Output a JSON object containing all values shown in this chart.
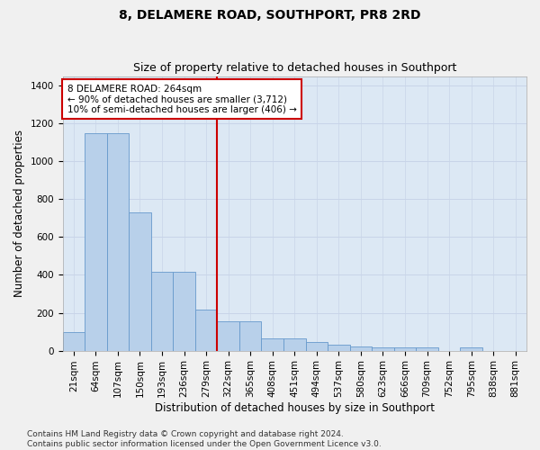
{
  "title": "8, DELAMERE ROAD, SOUTHPORT, PR8 2RD",
  "subtitle": "Size of property relative to detached houses in Southport",
  "xlabel": "Distribution of detached houses by size in Southport",
  "ylabel": "Number of detached properties",
  "categories": [
    "21sqm",
    "64sqm",
    "107sqm",
    "150sqm",
    "193sqm",
    "236sqm",
    "279sqm",
    "322sqm",
    "365sqm",
    "408sqm",
    "451sqm",
    "494sqm",
    "537sqm",
    "580sqm",
    "623sqm",
    "666sqm",
    "709sqm",
    "752sqm",
    "795sqm",
    "838sqm",
    "881sqm"
  ],
  "values": [
    100,
    1150,
    1150,
    730,
    415,
    415,
    215,
    155,
    155,
    65,
    65,
    45,
    30,
    20,
    15,
    15,
    15,
    0,
    15,
    0,
    0
  ],
  "bar_color": "#b8d0ea",
  "bar_edge_color": "#6699cc",
  "vline_x_index": 6,
  "vline_color": "#cc0000",
  "annotation_text": "8 DELAMERE ROAD: 264sqm\n← 90% of detached houses are smaller (3,712)\n10% of semi-detached houses are larger (406) →",
  "annotation_box_facecolor": "#ffffff",
  "annotation_box_edgecolor": "#cc0000",
  "ylim": [
    0,
    1450
  ],
  "yticks": [
    0,
    200,
    400,
    600,
    800,
    1000,
    1200,
    1400
  ],
  "grid_color": "#c8d4e8",
  "plot_bg_color": "#dce8f4",
  "fig_bg_color": "#f0f0f0",
  "title_fontsize": 10,
  "subtitle_fontsize": 9,
  "xlabel_fontsize": 8.5,
  "ylabel_fontsize": 8.5,
  "tick_fontsize": 7.5,
  "annotation_fontsize": 7.5,
  "footer_fontsize": 6.5,
  "footer": "Contains HM Land Registry data © Crown copyright and database right 2024.\nContains public sector information licensed under the Open Government Licence v3.0."
}
